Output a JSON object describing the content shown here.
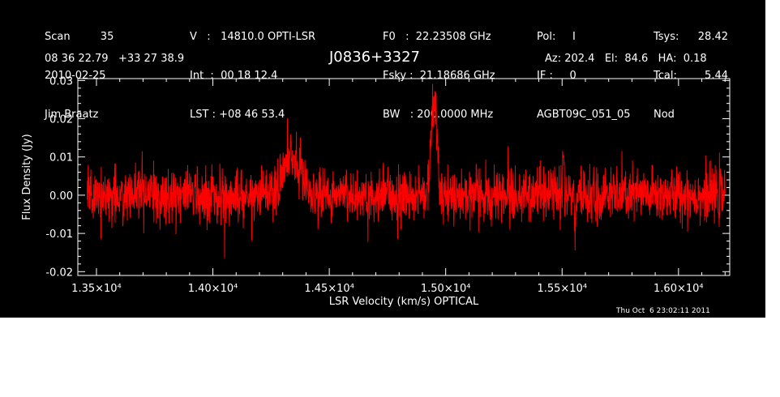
{
  "header": {
    "col1": [
      "Scan         35",
      "2010-02-25",
      "Jim Braatz"
    ],
    "col2": [
      "V   :   14810.0 OPTI-LSR",
      "Int  :  00 18 12.4",
      "LST : +08 46 53.4"
    ],
    "col3": [
      "F0   :  22.23508 GHz",
      "Fsky :  21.18686 GHz",
      "BW   : 200.0000 MHz"
    ],
    "col4": [
      "Pol:     I",
      "IF :     0",
      "AGBT09C_051_05"
    ],
    "col5a": [
      "Tsys:",
      "Tcal:",
      "Nod"
    ],
    "col5b": [
      "28.42",
      "5.44",
      ""
    ],
    "coords": "08 36 22.79   +33 27 38.9",
    "source": "J0836+3327",
    "azel": "Az: 202.4   El:  84.6   HA:  0.18"
  },
  "timestamp": "Thu Oct  6 23:02:11 2011",
  "colors": {
    "background": "#000000",
    "axes": "#ffffff",
    "trace": "#ff0000"
  },
  "chart_data": {
    "type": "line",
    "xlabel": "LSR Velocity (km/s) OPTICAL",
    "ylabel": "Flux Density (Jy)",
    "xlim": [
      13420,
      16220
    ],
    "ylim": [
      -0.021,
      0.0305
    ],
    "data_xrange": [
      13460,
      16200
    ],
    "xticks": [
      13500,
      14000,
      14500,
      15000,
      15500,
      16000
    ],
    "xtick_labels": [
      "1.35×10⁴",
      "1.40×10⁴",
      "1.45×10⁴",
      "1.50×10⁴",
      "1.55×10⁴",
      "1.60×10⁴"
    ],
    "yticks": [
      -0.02,
      -0.01,
      0.0,
      0.01,
      0.02,
      0.03
    ],
    "ytick_labels": [
      "-0.02",
      "-0.01",
      "0.00",
      "0.01",
      "0.02",
      "0.03"
    ],
    "noise_rms": 0.0035,
    "features": [
      {
        "center": 14340,
        "width": 40,
        "peak": 0.009
      },
      {
        "center": 14950,
        "width": 12,
        "peak": 0.026
      },
      {
        "center": 15505,
        "width": 2,
        "peak": 0.014
      },
      {
        "center": 15555,
        "width": 2,
        "peak": -0.011
      }
    ],
    "grid": false,
    "legend": "none"
  }
}
